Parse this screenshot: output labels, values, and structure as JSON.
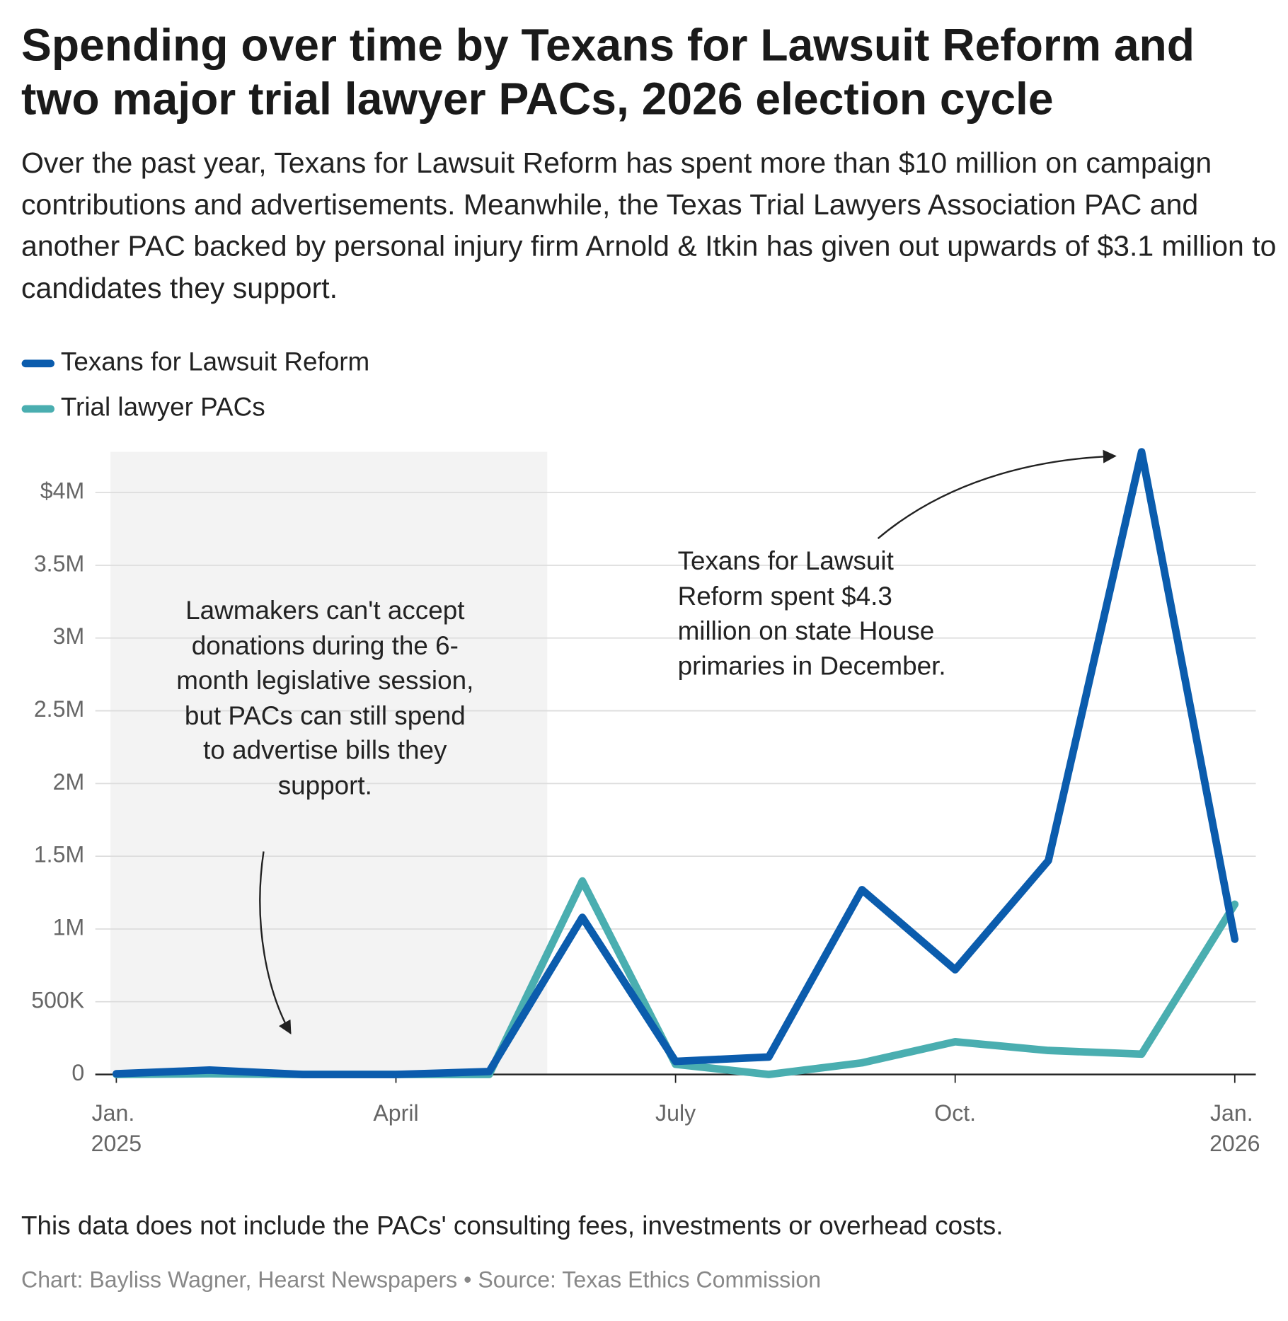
{
  "chart_data": {
    "type": "line",
    "title": "Spending over time by Texans for Lawsuit Reform and two major trial lawyer PACs, 2026 election cycle",
    "subtitle": "Over the past year, Texans for Lawsuit Reform has spent more than $10 million on campaign contributions and advertisements. Meanwhile, the Texas Trial Lawyers Association PAC and another PAC backed by personal injury firm Arnold & Itkin has given out upwards of $3.1 million to candidates they support.",
    "annotations": [
      "Lawmakers can't accept donations during the 6-month legislative session, but PACs can still spend to advertise bills they support.",
      "Texans for Lawsuit Reform spent $4.3 million on state House primaries in December."
    ],
    "note": "This data does not include the PACs' consulting fees, investments or overhead costs.",
    "credit": "Chart: Bayliss Wagner, Hearst Newspapers • Source: Texas Ethics Commission",
    "categories": [
      "Jan. 2025",
      null,
      null,
      "April",
      null,
      null,
      "July",
      null,
      null,
      "Oct.",
      null,
      null,
      "Jan. 2026"
    ],
    "series": [
      {
        "name": "Texans for Lawsuit Reform",
        "color": "#0b5cad",
        "values": [
          5000,
          30000,
          0,
          0,
          20000,
          1080000,
          90000,
          120000,
          1270000,
          720000,
          1470000,
          4280000,
          930000
        ]
      },
      {
        "name": "Trial lawyer PACs",
        "color": "#4aaeb0",
        "values": [
          0,
          5000,
          0,
          0,
          0,
          1330000,
          70000,
          0,
          80000,
          225000,
          165000,
          140000,
          1170000
        ]
      }
    ],
    "ylim": [
      0,
      4280000
    ],
    "yticks": [
      0,
      {
        "value": 500000,
        "label": "500K"
      },
      {
        "value": 1000000,
        "label": "1M"
      },
      {
        "value": 1500000,
        "label": "1.5M"
      },
      {
        "value": 2000000,
        "label": "2M"
      },
      {
        "value": 2500000,
        "label": "2.5M"
      },
      {
        "value": 3000000,
        "label": "3M"
      },
      {
        "value": 3500000,
        "label": "3.5M"
      },
      {
        "value": 4000000,
        "label": "$4M"
      }
    ],
    "grid": true
  }
}
